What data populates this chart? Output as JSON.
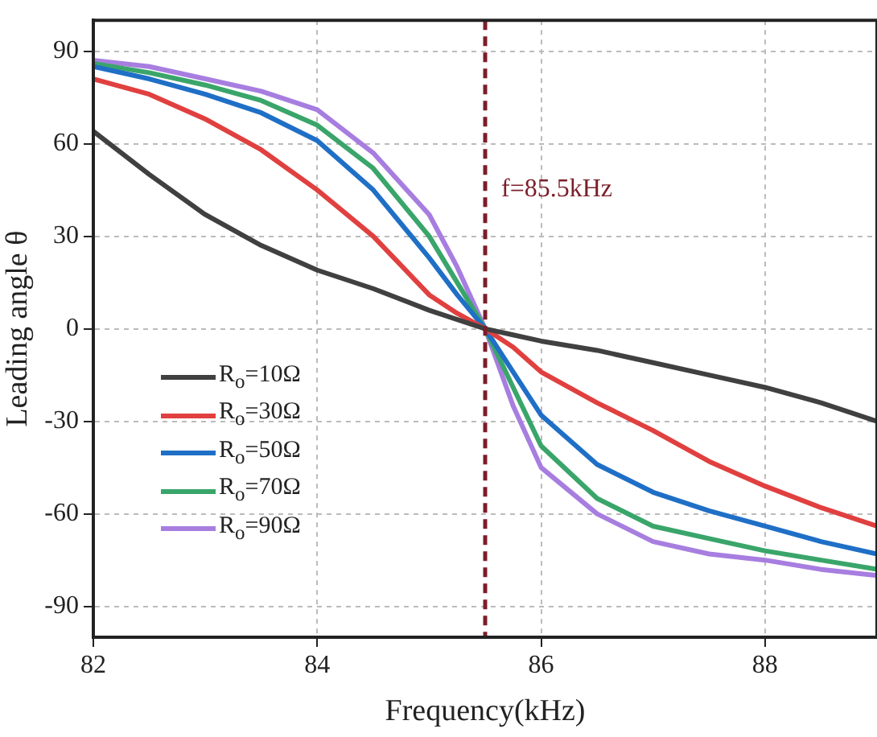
{
  "chart_data": {
    "type": "line",
    "xlabel": "Frequency(kHz)",
    "ylabel": "Leading angle θ",
    "x": [
      82,
      82.5,
      83,
      83.5,
      84,
      84.5,
      85,
      85.25,
      85.5,
      85.75,
      86,
      86.5,
      87,
      87.5,
      88,
      88.5,
      89
    ],
    "series": [
      {
        "name": "R$_{o}$=10Ω",
        "color": "#404040",
        "values": [
          64,
          50,
          37,
          27,
          19,
          13,
          6,
          3,
          0,
          -2,
          -4,
          -7,
          -11,
          -15,
          -19,
          -24,
          -30
        ]
      },
      {
        "name": "R$_{o}$=30Ω",
        "color": "#e0403f",
        "values": [
          81,
          76,
          68,
          58,
          45,
          30,
          11,
          5,
          0,
          -6,
          -14,
          -24,
          -33,
          -43,
          -51,
          -58,
          -64
        ]
      },
      {
        "name": "R$_{o}$=50Ω",
        "color": "#1f6fc6",
        "values": [
          85,
          81,
          76,
          70,
          61,
          45,
          23,
          11,
          0,
          -14,
          -28,
          -44,
          -53,
          -59,
          -64,
          -69,
          -73
        ]
      },
      {
        "name": "R$_{o}$=70Ω",
        "color": "#3aa56a",
        "values": [
          86,
          83,
          79,
          74,
          66,
          52,
          30,
          15,
          0,
          -19,
          -38,
          -55,
          -64,
          -68,
          -72,
          -75,
          -78
        ]
      },
      {
        "name": "R$_{o}$=90Ω",
        "color": "#a77ee0",
        "values": [
          87,
          85,
          81,
          77,
          71,
          57,
          37,
          20,
          0,
          -25,
          -45,
          -60,
          -69,
          -73,
          -75,
          -78,
          -80
        ]
      }
    ],
    "xlim": [
      82,
      89
    ],
    "xticks": [
      82,
      84,
      86,
      88
    ],
    "ylim": [
      -100,
      100
    ],
    "yticks": [
      -90,
      -60,
      -30,
      0,
      30,
      60,
      90
    ],
    "ref_lines": [
      {
        "axis": "x",
        "value": 85.5,
        "label": "f=85.5kHz",
        "color": "#7b1e2a",
        "line_style": "dashed"
      }
    ],
    "grid": true,
    "legend": "bottom left",
    "marker": "none",
    "line_style": "solid"
  }
}
